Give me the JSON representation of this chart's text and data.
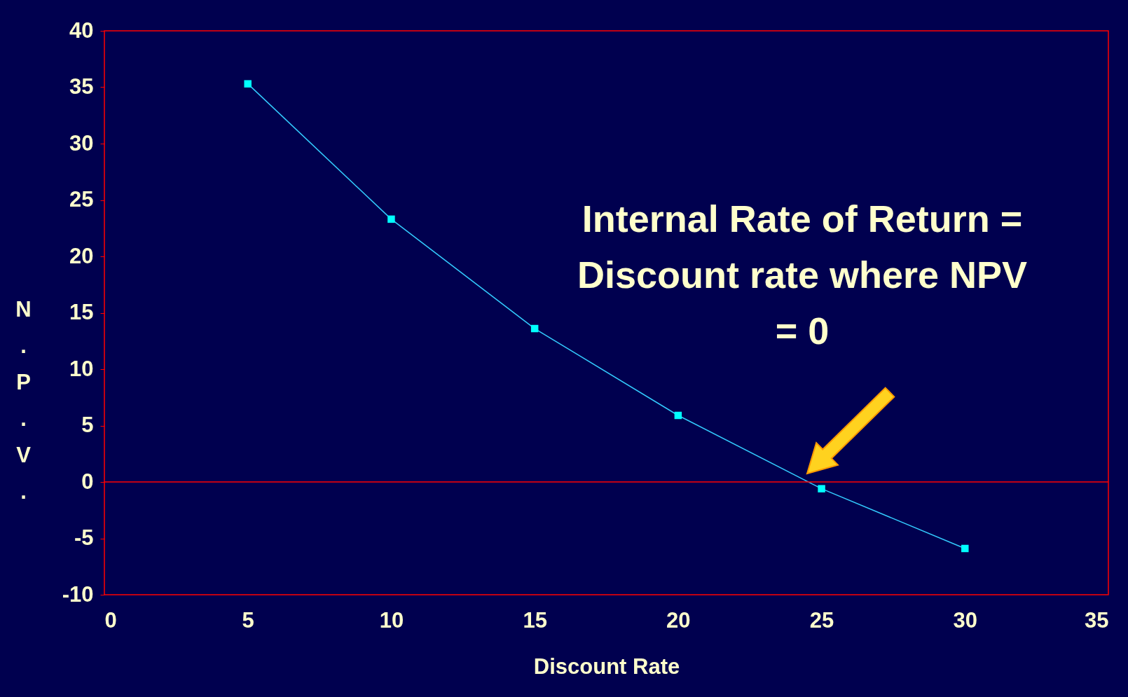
{
  "chart_data": {
    "type": "line",
    "xlabel": "Discount Rate",
    "ylabel": "N.P.V.",
    "x": [
      5,
      10,
      15,
      20,
      25,
      30
    ],
    "series": [
      {
        "color": "#33ccff",
        "values": [
          35.3,
          23.3,
          13.6,
          5.9,
          -0.6,
          -5.9
        ]
      }
    ],
    "xlim": [
      0,
      35
    ],
    "xticks": [
      0,
      5,
      10,
      15,
      20,
      25,
      30,
      35
    ],
    "ylim": [
      -10,
      40
    ],
    "yticks": [
      -10,
      -5,
      0,
      5,
      10,
      15,
      20,
      25,
      30,
      35,
      40
    ],
    "marker": "square",
    "line_style": "solid",
    "ref_lines": [
      {
        "axis": "y",
        "value": 0,
        "color": "#ff0000"
      }
    ],
    "annotations": [
      "Internal Rate of Return =\nDiscount rate where NPV\n= 0"
    ]
  }
}
